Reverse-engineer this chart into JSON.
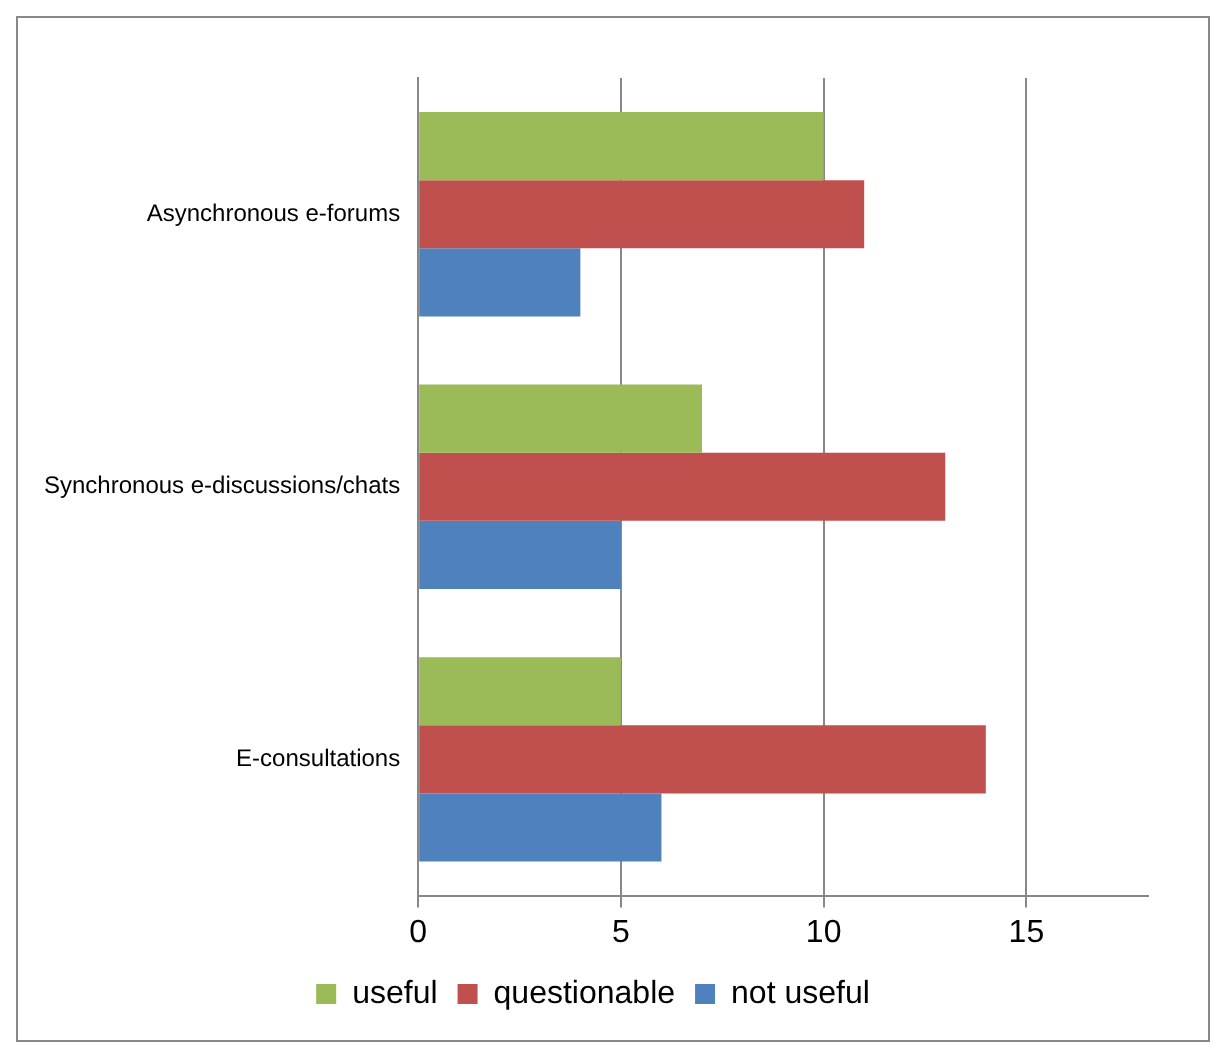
{
  "chart_data": {
    "type": "bar",
    "orientation": "horizontal",
    "categories": [
      "Asynchronous e-forums",
      "Synchronous e-discussions/chats",
      "E-consultations"
    ],
    "series": [
      {
        "name": "useful",
        "color": "#9bbb59",
        "values": [
          10,
          7,
          5
        ]
      },
      {
        "name": "questionable",
        "color": "#c0504d",
        "values": [
          11,
          13,
          14
        ]
      },
      {
        "name": "not useful",
        "color": "#4f81bd",
        "values": [
          4,
          5,
          6
        ]
      }
    ],
    "xlim": [
      0,
      18
    ],
    "xticks": [
      0,
      5,
      10,
      15
    ],
    "grid": "x",
    "legend": "bottom"
  }
}
